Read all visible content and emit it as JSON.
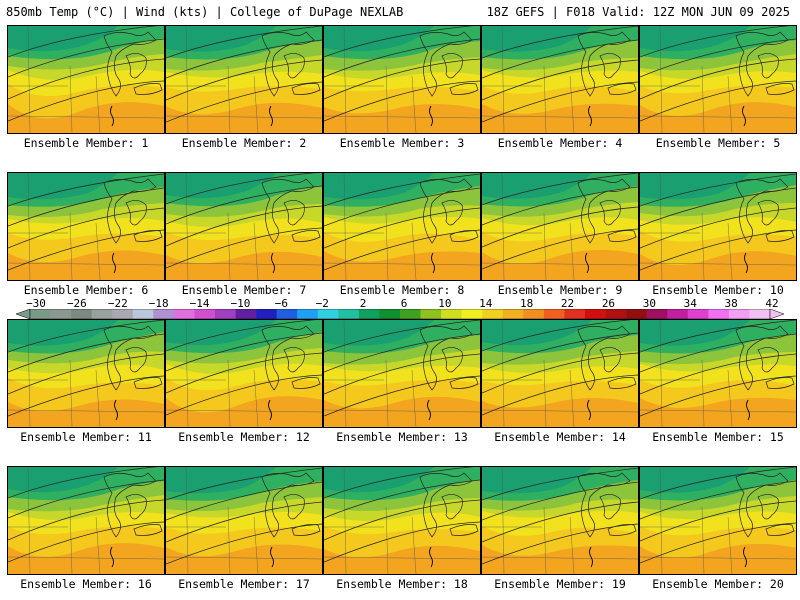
{
  "header": {
    "left": "850mb Temp (°C) | Wind (kts) | College of DuPage NEXLAB",
    "right": "18Z GEFS | F018 Valid: 12Z MON JUN 09 2025"
  },
  "panels": [
    {
      "label": "Ensemble Member: 1",
      "member": 1
    },
    {
      "label": "Ensemble Member: 2",
      "member": 2
    },
    {
      "label": "Ensemble Member: 3",
      "member": 3
    },
    {
      "label": "Ensemble Member: 4",
      "member": 4
    },
    {
      "label": "Ensemble Member: 5",
      "member": 5
    },
    {
      "label": "Ensemble Member: 6",
      "member": 6
    },
    {
      "label": "Ensemble Member: 7",
      "member": 7
    },
    {
      "label": "Ensemble Member: 8",
      "member": 8
    },
    {
      "label": "Ensemble Member: 9",
      "member": 9
    },
    {
      "label": "Ensemble Member: 10",
      "member": 10
    },
    {
      "label": "Ensemble Member: 11",
      "member": 11
    },
    {
      "label": "Ensemble Member: 12",
      "member": 12
    },
    {
      "label": "Ensemble Member: 13",
      "member": 13
    },
    {
      "label": "Ensemble Member: 14",
      "member": 14
    },
    {
      "label": "Ensemble Member: 15",
      "member": 15
    },
    {
      "label": "Ensemble Member: 16",
      "member": 16
    },
    {
      "label": "Ensemble Member: 17",
      "member": 17
    },
    {
      "label": "Ensemble Member: 18",
      "member": 18
    },
    {
      "label": "Ensemble Member: 19",
      "member": 19
    },
    {
      "label": "Ensemble Member: 20",
      "member": 20
    }
  ],
  "colorbar": {
    "ticks": [
      "−30",
      "−26",
      "−22",
      "−18",
      "−14",
      "−10",
      "−6",
      "−2",
      "2",
      "6",
      "10",
      "14",
      "18",
      "22",
      "26",
      "30",
      "34",
      "38",
      "42"
    ],
    "colors": [
      "#7a9a8a",
      "#8a9a90",
      "#7a8a80",
      "#9aa2a0",
      "#a9a9b0",
      "#b8c8d8",
      "#b090d0",
      "#e070e0",
      "#d050d0",
      "#a040c0",
      "#6020a0",
      "#2020c0",
      "#2060e0",
      "#20a0f0",
      "#30d0e0",
      "#20c0a0",
      "#10a060",
      "#109030",
      "#40a020",
      "#90c020",
      "#d0e020",
      "#f0f020",
      "#f0d020",
      "#f0b020",
      "#f09020",
      "#f06020",
      "#e03020",
      "#d01010",
      "#b01010",
      "#901010",
      "#a01060",
      "#c020a0",
      "#e040d0",
      "#f070f0",
      "#f0a0f0",
      "#f0c0f0"
    ]
  },
  "map_colors": {
    "cold_green": "#1aa070",
    "green": "#2fb060",
    "light_green": "#8cc43c",
    "yellow_green": "#c8d82a",
    "yellow": "#f2e21e",
    "orange_yellow": "#f5c81e",
    "orange": "#f3a51f"
  }
}
